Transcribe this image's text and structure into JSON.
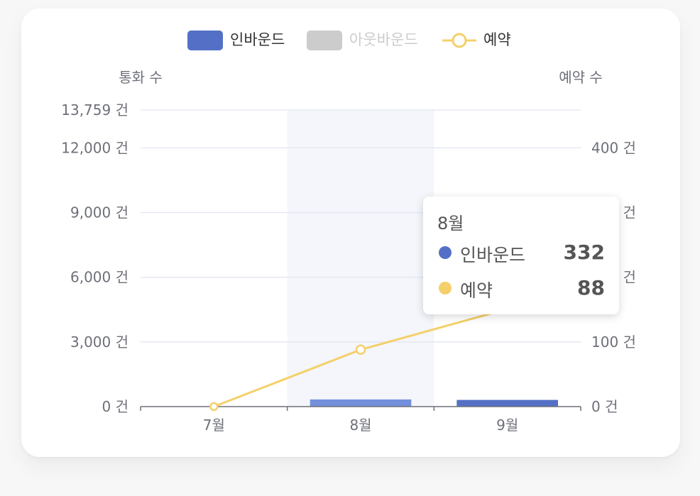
{
  "chart_data": {
    "type": "bar",
    "categories": [
      "7월",
      "8월",
      "9월"
    ],
    "series": [
      {
        "name": "인바운드",
        "type": "bar",
        "axis": "left",
        "color": "#5470c6",
        "values": [
          0,
          332,
          310
        ]
      },
      {
        "name": "아웃바운드",
        "type": "bar",
        "axis": "left",
        "color": "#cccccc",
        "values": [
          0,
          0,
          0
        ],
        "hidden": true
      },
      {
        "name": "예약",
        "type": "line",
        "axis": "right",
        "color": "#f4d06a",
        "values": [
          0,
          88,
          151
        ]
      }
    ],
    "y_left": {
      "label": "통화 수",
      "ticks": [
        "0 건",
        "3,000 건",
        "6,000 건",
        "9,000 건",
        "12,000 건",
        "13,759 건"
      ],
      "tick_values": [
        0,
        3000,
        6000,
        9000,
        12000,
        13759
      ],
      "range": [
        0,
        13759
      ]
    },
    "y_right": {
      "label": "예약 수",
      "ticks": [
        "0 건",
        "100 건",
        "200 건",
        "300 건",
        "400 건"
      ],
      "tick_values": [
        0,
        100,
        200,
        300,
        400
      ],
      "range": [
        0,
        458.6
      ]
    },
    "highlighted_category": "8월",
    "legend_position": "top-center",
    "grid": true
  },
  "tooltip": {
    "title": "8월",
    "rows": [
      {
        "name": "인바운드",
        "value": "332",
        "color": "#5470c6"
      },
      {
        "name": "예약",
        "value": "88",
        "color": "#f4d06a"
      }
    ]
  }
}
